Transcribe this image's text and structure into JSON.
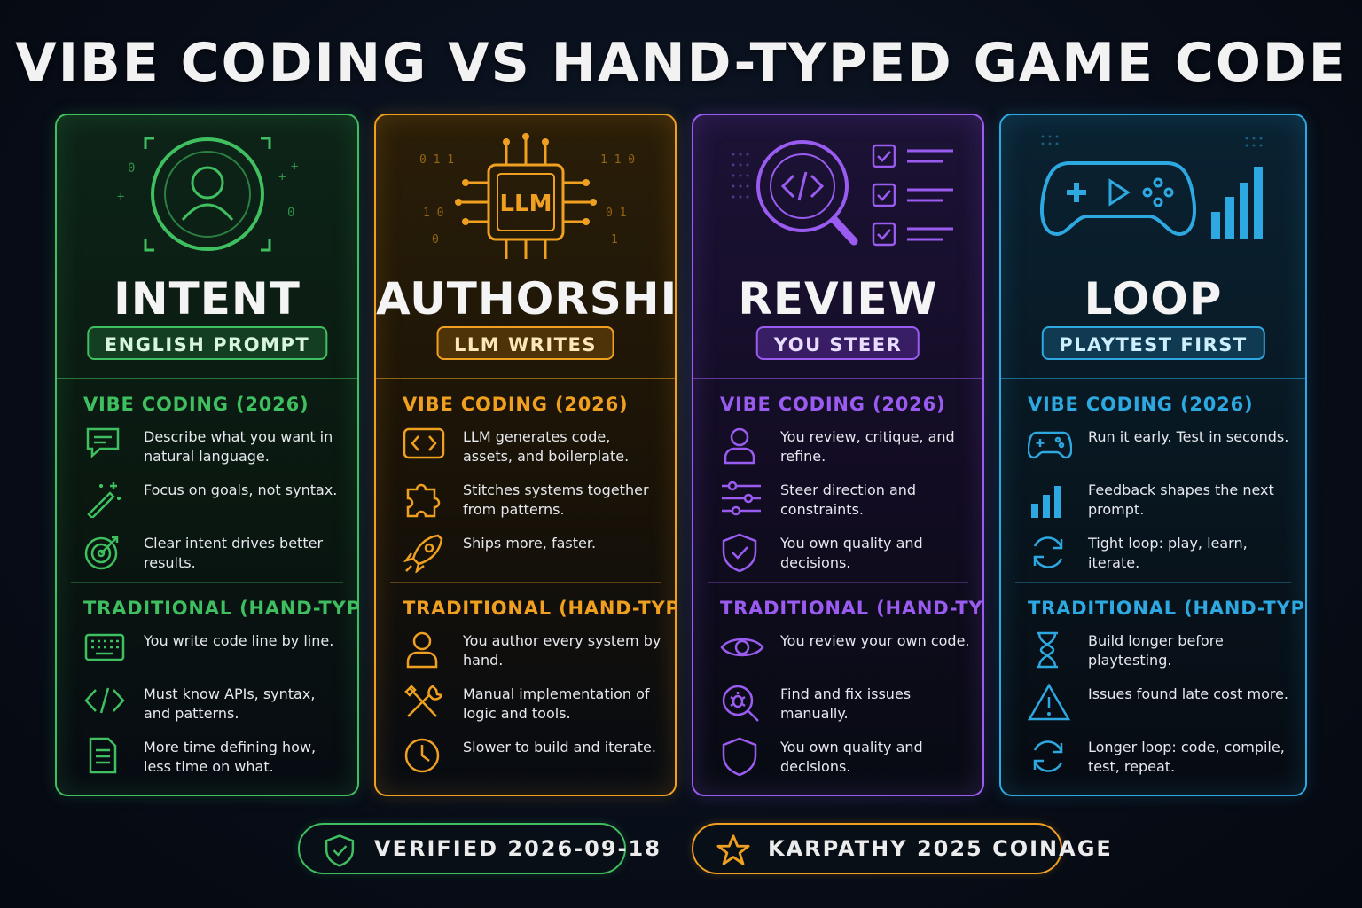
{
  "title": "VIBE CODING VS HAND-TYPED GAME CODE",
  "cards": [
    {
      "heading": "INTENT",
      "pill": "ENGLISH PROMPT",
      "hero_icon": "user-target-icon",
      "color": "#3fbf5f",
      "vibe_title": "VIBE CODING (2026)",
      "vibe_items": [
        {
          "icon": "chat-icon",
          "text": "Describe what you want in natural language."
        },
        {
          "icon": "magic-wand-icon",
          "text": "Focus on goals, not syntax."
        },
        {
          "icon": "target-icon",
          "text": "Clear intent drives better results."
        }
      ],
      "trad_title": "TRADITIONAL (HAND-TYPED)",
      "trad_items": [
        {
          "icon": "keyboard-icon",
          "text": "You write code line by line."
        },
        {
          "icon": "code-icon",
          "text": "Must know APIs, syntax, and patterns."
        },
        {
          "icon": "document-icon",
          "text": "More time defining how, less time on what."
        }
      ]
    },
    {
      "heading": "AUTHORSHIP",
      "pill": "LLM WRITES",
      "hero_icon": "llm-chip-icon",
      "hero_label": "LLM",
      "color": "#f0a020",
      "vibe_title": "VIBE CODING (2026)",
      "vibe_items": [
        {
          "icon": "code-brackets-icon",
          "text": "LLM generates code, assets, and boilerplate."
        },
        {
          "icon": "puzzle-icon",
          "text": "Stitches systems together from patterns."
        },
        {
          "icon": "rocket-icon",
          "text": "Ships more, faster."
        }
      ],
      "trad_title": "TRADITIONAL (HAND-TYPED)",
      "trad_items": [
        {
          "icon": "person-icon",
          "text": "You author every system by hand."
        },
        {
          "icon": "tools-icon",
          "text": "Manual implementation of logic and tools."
        },
        {
          "icon": "clock-icon",
          "text": "Slower to build and iterate."
        }
      ]
    },
    {
      "heading": "REVIEW",
      "pill": "YOU STEER",
      "hero_icon": "code-review-magnifier-icon",
      "color": "#9a5cf0",
      "vibe_title": "VIBE CODING (2026)",
      "vibe_items": [
        {
          "icon": "person-icon",
          "text": "You review, critique, and refine."
        },
        {
          "icon": "sliders-icon",
          "text": "Steer direction and constraints."
        },
        {
          "icon": "shield-check-icon",
          "text": "You own quality and decisions."
        }
      ],
      "trad_title": "TRADITIONAL (HAND-TYPED)",
      "trad_items": [
        {
          "icon": "eye-icon",
          "text": "You review your own code."
        },
        {
          "icon": "bug-search-icon",
          "text": "Find and fix issues manually."
        },
        {
          "icon": "shield-icon",
          "text": "You own quality and decisions."
        }
      ]
    },
    {
      "heading": "LOOP",
      "pill": "PLAYTEST FIRST",
      "hero_icon": "gamepad-chart-icon",
      "color": "#2ea8e0",
      "vibe_title": "VIBE CODING (2026)",
      "vibe_items": [
        {
          "icon": "gamepad-icon",
          "text": "Run it early. Test in seconds."
        },
        {
          "icon": "bar-chart-icon",
          "text": "Feedback shapes the next prompt."
        },
        {
          "icon": "refresh-icon",
          "text": "Tight loop: play, learn, iterate."
        }
      ],
      "trad_title": "TRADITIONAL (HAND-TYPED)",
      "trad_items": [
        {
          "icon": "hourglass-icon",
          "text": "Build longer before playtesting."
        },
        {
          "icon": "warning-icon",
          "text": "Issues found late cost more."
        },
        {
          "icon": "refresh-icon",
          "text": "Longer loop: code, compile, test, repeat."
        }
      ]
    }
  ],
  "badges": [
    {
      "icon": "shield-check-icon",
      "text": "VERIFIED 2026-09-18",
      "color": "#3fbf5f"
    },
    {
      "icon": "star-icon",
      "text": "KARPATHY 2025 COINAGE",
      "color": "#f0a020"
    }
  ]
}
